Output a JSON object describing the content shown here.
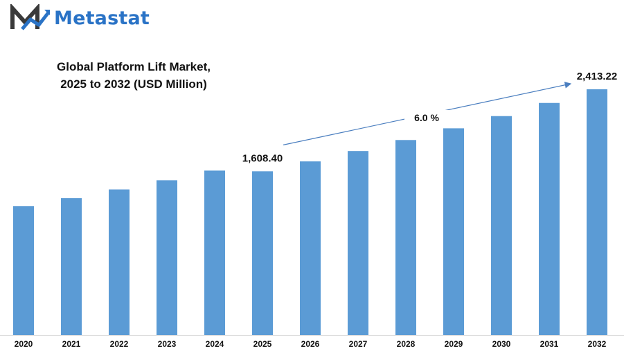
{
  "brand": {
    "name": "Metastat",
    "color": "#2a73c6"
  },
  "chart_data": {
    "type": "bar",
    "title_line1": "Global Platform Lift Market,",
    "title_line2": "2025 to 2032 (USD Million)",
    "categories": [
      "2020",
      "2021",
      "2022",
      "2023",
      "2024",
      "2025",
      "2026",
      "2027",
      "2028",
      "2029",
      "2030",
      "2031",
      "2032"
    ],
    "values": [
      1265,
      1345,
      1430,
      1520,
      1615,
      1608.4,
      1705,
      1807,
      1915,
      2030,
      2150,
      2279,
      2413.22
    ],
    "series_color": "#5b9bd5",
    "data_labels": [
      {
        "category": "2025",
        "text": "1,608.40"
      },
      {
        "category": "2032",
        "text": "2,413.22"
      }
    ],
    "cagr_label": "6.0 %",
    "grid": false,
    "legend": "none"
  }
}
